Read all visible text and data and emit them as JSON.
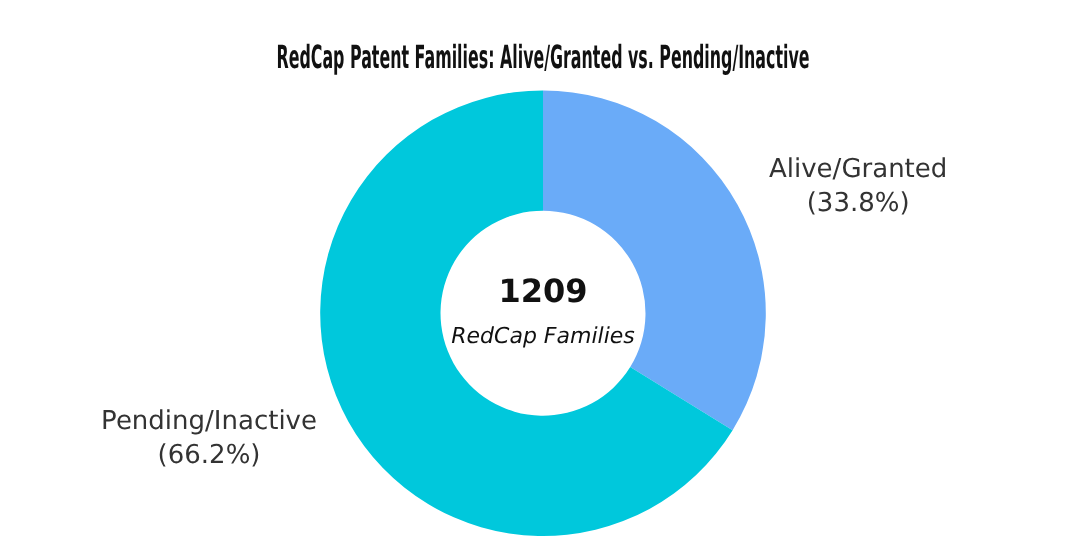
{
  "chart_data": {
    "type": "donut",
    "title": "RedCap Patent Families: Alive/Granted vs. Pending/Inactive",
    "categories": [
      "Alive/Granted",
      "Pending/Inactive"
    ],
    "values": [
      33.8,
      66.2
    ],
    "colors": [
      "#6aabf8",
      "#00c8dc"
    ],
    "value_labels": [
      "(33.8%)",
      "(66.2%)"
    ],
    "annotations": [
      "1209",
      "RedCap Families"
    ],
    "legend": false
  }
}
